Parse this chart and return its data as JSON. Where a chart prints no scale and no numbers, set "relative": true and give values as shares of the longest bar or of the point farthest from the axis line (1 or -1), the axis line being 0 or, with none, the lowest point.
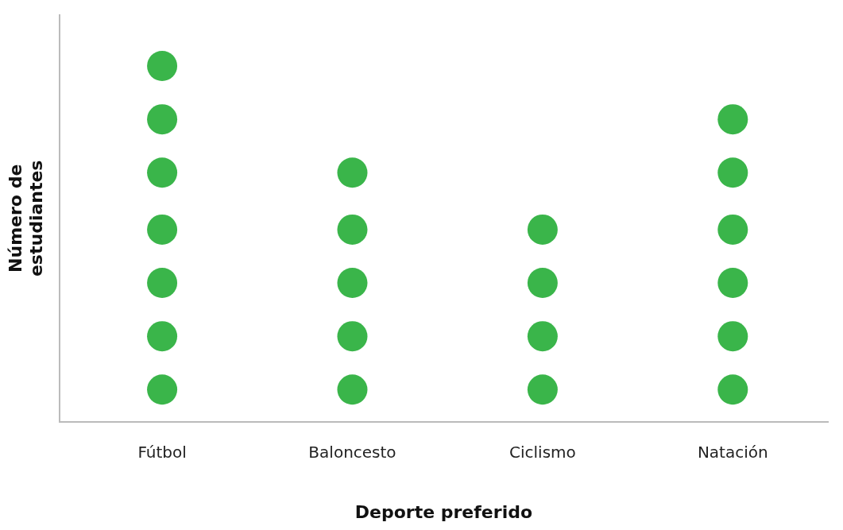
{
  "chart_data": {
    "type": "scatter",
    "xlabel": "Deporte preferido",
    "ylabel": "Número de estudiantes",
    "relative": true,
    "marker": "circle",
    "grid": false,
    "legend": false,
    "categories": [
      "Fútbol",
      "Baloncesto",
      "Ciclismo",
      "Natación"
    ],
    "series": [
      {
        "color": "#3ab54a",
        "x": [
          "Fútbol",
          "Fútbol",
          "Fútbol",
          "Fútbol",
          "Fútbol",
          "Fútbol",
          "Fútbol",
          "Baloncesto",
          "Baloncesto",
          "Baloncesto",
          "Baloncesto",
          "Baloncesto",
          "Ciclismo",
          "Ciclismo",
          "Ciclismo",
          "Ciclismo",
          "Natación",
          "Natación",
          "Natación",
          "Natación",
          "Natación",
          "Natación"
        ],
        "values": [
          0.09,
          0.24,
          0.39,
          0.54,
          0.7,
          0.85,
          1.0,
          0.09,
          0.24,
          0.39,
          0.54,
          0.7,
          0.09,
          0.24,
          0.39,
          0.54,
          0.09,
          0.24,
          0.39,
          0.54,
          0.7,
          0.85
        ]
      }
    ]
  }
}
